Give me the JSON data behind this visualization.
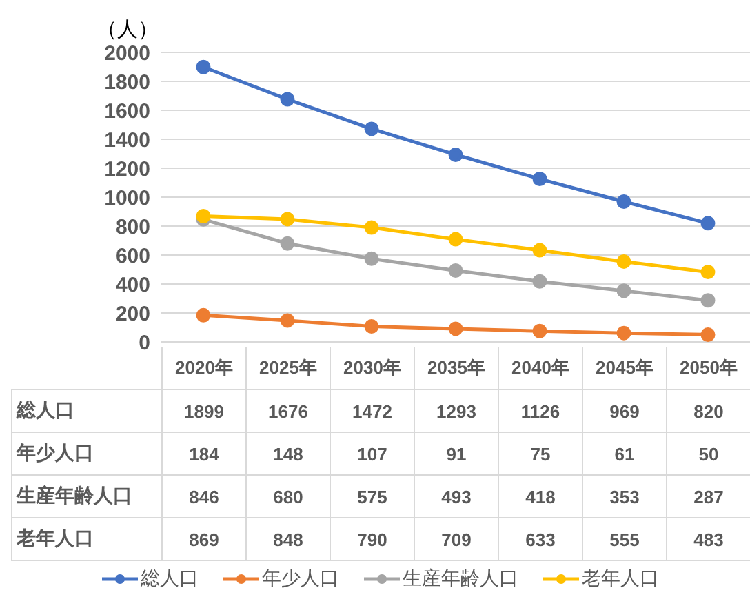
{
  "chart_data": {
    "type": "line",
    "ylabel": "（人）",
    "categories": [
      "2020年",
      "2025年",
      "2030年",
      "2035年",
      "2040年",
      "2045年",
      "2050年"
    ],
    "series": [
      {
        "name": "総人口",
        "color": "#4472c4",
        "values": [
          1899,
          1676,
          1472,
          1293,
          1126,
          969,
          820
        ]
      },
      {
        "name": "年少人口",
        "color": "#ed7d31",
        "values": [
          184,
          148,
          107,
          91,
          75,
          61,
          50
        ]
      },
      {
        "name": "生産年齢人口",
        "color": "#a5a5a5",
        "values": [
          846,
          680,
          575,
          493,
          418,
          353,
          287
        ]
      },
      {
        "name": "老年人口",
        "color": "#ffc000",
        "values": [
          869,
          848,
          790,
          709,
          633,
          555,
          483
        ]
      }
    ],
    "ylim": [
      0,
      2000
    ],
    "yticks": [
      0,
      200,
      400,
      600,
      800,
      1000,
      1200,
      1400,
      1600,
      1800,
      2000
    ],
    "grid": "y",
    "marker": "circle",
    "line_style": "solid",
    "data_labels": true,
    "legend": "bottom"
  }
}
